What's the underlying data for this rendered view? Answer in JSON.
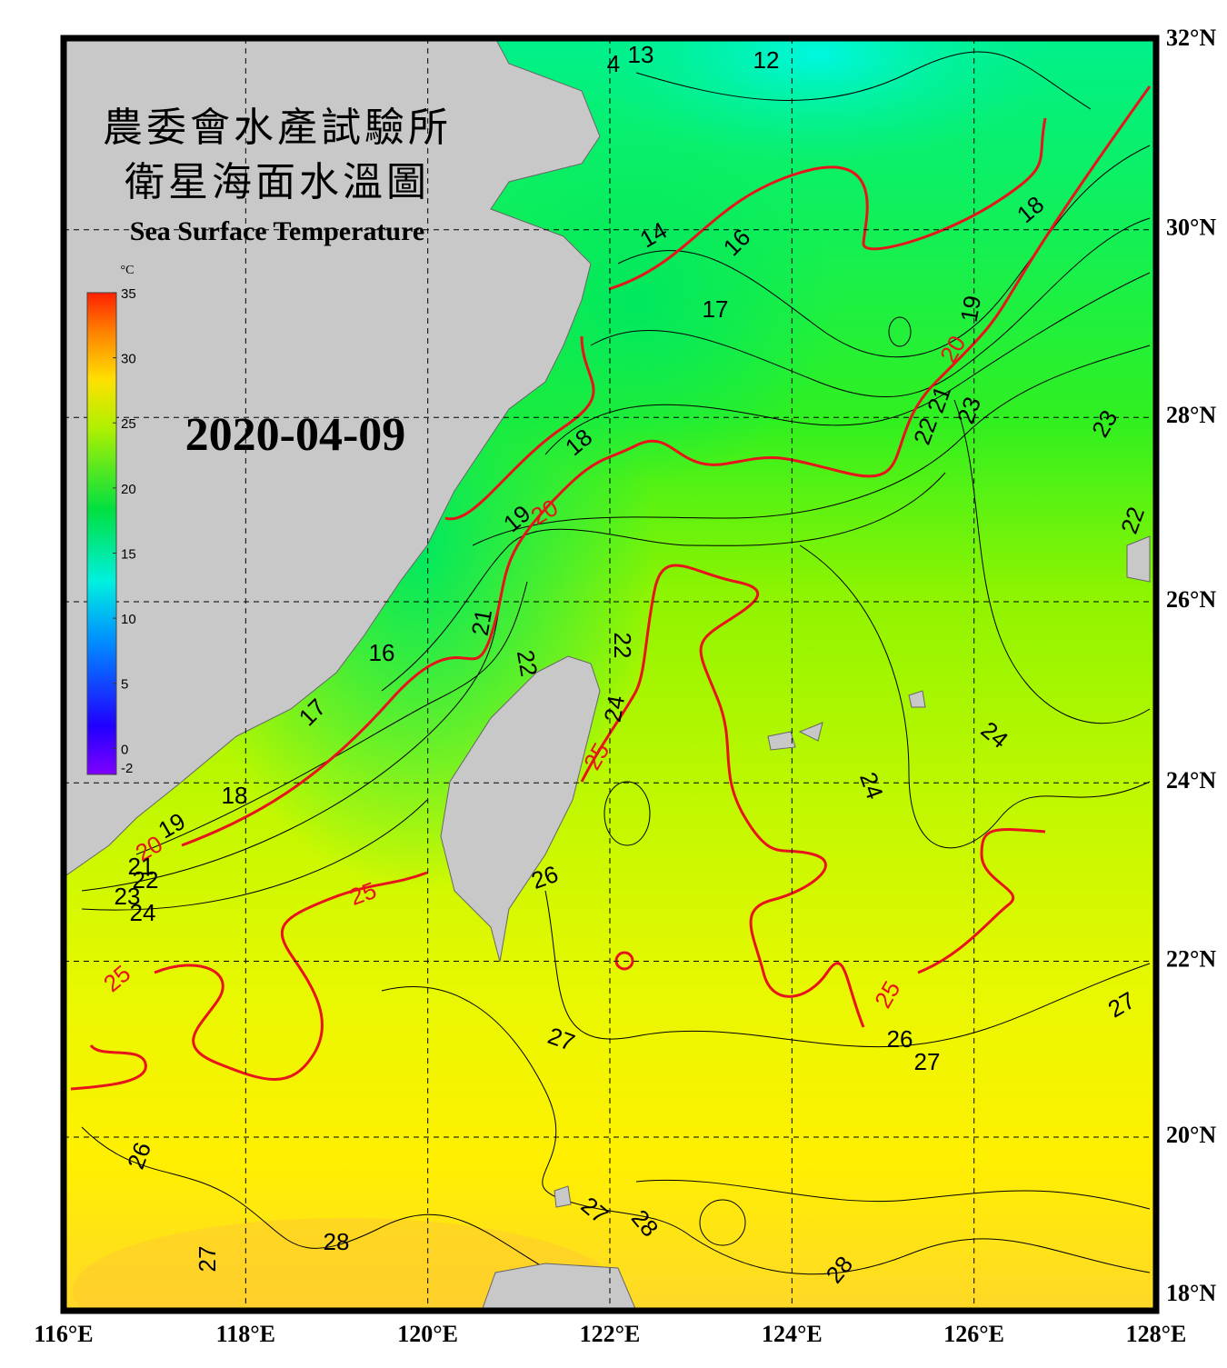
{
  "header": {
    "title_zh": "農委會水產試驗所",
    "subtitle_zh": "衛星海面水溫圖",
    "title_en": "Sea Surface Temperature",
    "date": "2020-04-09"
  },
  "colorbar": {
    "unit": "°C",
    "range": [
      -2,
      35
    ],
    "ticks": [
      -2,
      0,
      5,
      10,
      15,
      20,
      25,
      30,
      35
    ]
  },
  "map": {
    "xlim": [
      116,
      128
    ],
    "ylim": [
      18,
      32
    ],
    "xticks": [
      {
        "value": 116,
        "label": "116°E"
      },
      {
        "value": 118,
        "label": "118°E"
      },
      {
        "value": 120,
        "label": "120°E"
      },
      {
        "value": 122,
        "label": "122°E"
      },
      {
        "value": 124,
        "label": "124°E"
      },
      {
        "value": 126,
        "label": "126°E"
      },
      {
        "value": 128,
        "label": "128°E"
      }
    ],
    "yticks": [
      {
        "value": 18,
        "label": "18°N"
      },
      {
        "value": 20,
        "label": "20°N"
      },
      {
        "value": 22,
        "label": "22°N"
      },
      {
        "value": 24,
        "label": "24°N"
      },
      {
        "value": 26,
        "label": "26°N"
      },
      {
        "value": 28,
        "label": "28°N"
      },
      {
        "value": 30,
        "label": "30°N"
      },
      {
        "value": 32,
        "label": "32°N"
      }
    ],
    "contour_labels": [
      13,
      4,
      12,
      14,
      16,
      17,
      18,
      19,
      20,
      21,
      22,
      23,
      23,
      22,
      18,
      20,
      19,
      21,
      22,
      22,
      24,
      25,
      16,
      17,
      18,
      19,
      20,
      21,
      22,
      23,
      24,
      25,
      26,
      25,
      24,
      24,
      25,
      26,
      27,
      27,
      27,
      26,
      27,
      28,
      27,
      28,
      28
    ],
    "contour_color": "#000000",
    "major_contour_color": "#e8141c",
    "land_color": "#c8c8c8"
  }
}
